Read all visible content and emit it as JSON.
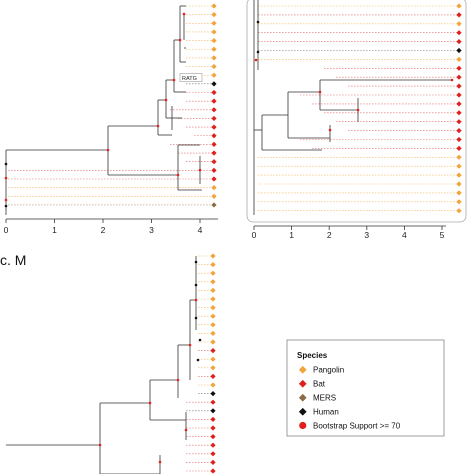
{
  "panels": {
    "left": {
      "axis_ticks": [
        "0",
        "1",
        "2",
        "3",
        "4"
      ],
      "node_label": "RATG"
    },
    "right": {
      "axis_ticks": [
        "0",
        "1",
        "2",
        "3",
        "4",
        "5"
      ]
    },
    "bottom": {
      "label": "c. M"
    }
  },
  "legend": {
    "title": "Species",
    "items": [
      {
        "label": "Pangolin",
        "color": "#f2a33a",
        "marker": "diamond"
      },
      {
        "label": "Bat",
        "color": "#e0201c",
        "marker": "diamond"
      },
      {
        "label": "MERS",
        "color": "#8b6a45",
        "marker": "diamond"
      },
      {
        "label": "Human",
        "color": "#111111",
        "marker": "diamond"
      },
      {
        "label": "Bootstrap Support >= 70",
        "color": "#e0201c",
        "marker": "circle"
      }
    ]
  },
  "colors": {
    "pangolin": "#f2a33a",
    "bat": "#e0201c",
    "mers": "#8b6a45",
    "human": "#111111",
    "branch": "#333333",
    "guide_pangolin": "#f5b860",
    "guide_bat": "#e86b6b"
  }
}
